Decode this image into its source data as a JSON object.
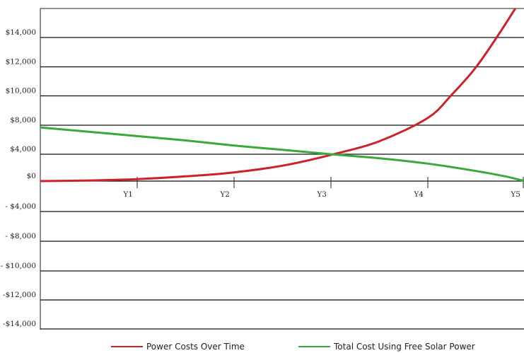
{
  "chart_data": {
    "type": "line",
    "x_tick_labels": [
      "Y1",
      "Y2",
      "Y3",
      "Y4",
      "Y5"
    ],
    "y_tick_labels": [
      "$14,000",
      "$12,000",
      "$10,000",
      "$8,000",
      "$4,000",
      "$0",
      "- $4,000",
      "- $8,000",
      "- $10,000",
      "-$12,000",
      "-$14,000"
    ],
    "grid": true,
    "legend_position": "bottom-center",
    "series": [
      {
        "name": "Power Costs Over Time",
        "color": "#cc2229",
        "x": [
          0,
          0.5,
          1,
          1.5,
          2,
          2.5,
          3,
          3.5,
          4,
          4.25,
          4.5,
          4.75,
          5
        ],
        "y": [
          0,
          100,
          300,
          700,
          1300,
          2300,
          3900,
          5800,
          8500,
          10100,
          12000,
          14400,
          17000
        ]
      },
      {
        "name": "Total Cost Using Free Solar Power",
        "color": "#3aa93a",
        "x": [
          0,
          0.5,
          1,
          1.5,
          2,
          2.5,
          3,
          3.5,
          4,
          4.5,
          4.8,
          5
        ],
        "y": [
          7700,
          7100,
          6500,
          5900,
          5200,
          4600,
          4000,
          3400,
          2600,
          1500,
          700,
          0
        ]
      }
    ]
  }
}
